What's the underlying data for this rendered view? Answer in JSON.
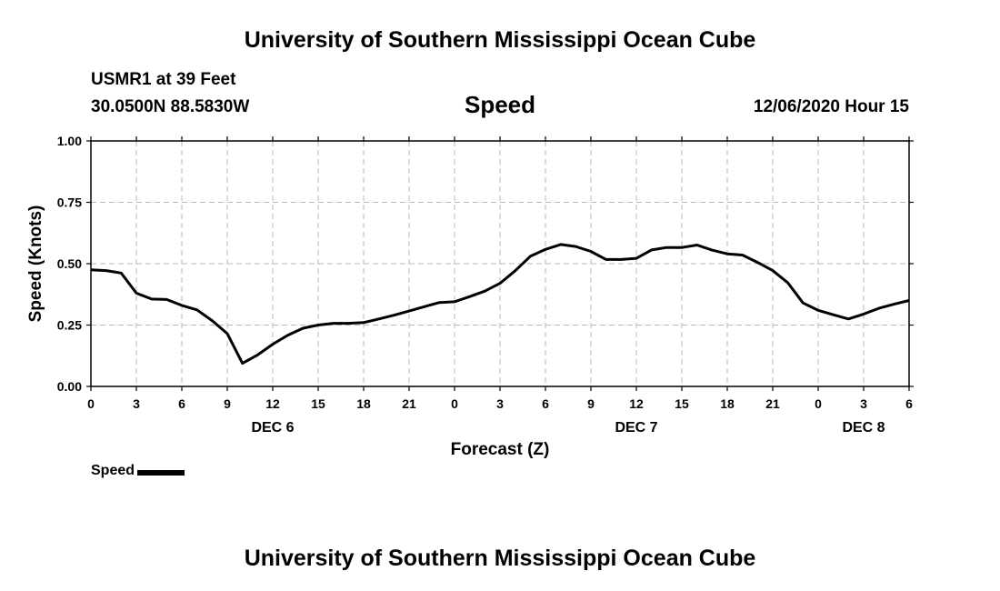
{
  "page": {
    "top_title": "University of Southern Mississippi Ocean Cube",
    "bottom_title": "University of Southern Mississippi Ocean Cube",
    "station": "USMR1 at 39 Feet",
    "coords": "30.0500N 88.5830W",
    "run_time": "12/06/2020 Hour 15"
  },
  "chart_data": {
    "type": "line",
    "title": "Speed",
    "xlabel": "Forecast (Z)",
    "ylabel": "Speed (Knots)",
    "xlim": [
      0,
      54
    ],
    "ylim": [
      0,
      1
    ],
    "grid": true,
    "x_ticks": [
      0,
      3,
      6,
      9,
      12,
      15,
      18,
      21,
      24,
      27,
      30,
      33,
      36,
      39,
      42,
      45,
      48,
      51,
      54
    ],
    "x_tick_labels": [
      "0",
      "3",
      "6",
      "9",
      "12",
      "15",
      "18",
      "21",
      "0",
      "3",
      "6",
      "9",
      "12",
      "15",
      "18",
      "21",
      "0",
      "3",
      "6"
    ],
    "y_ticks": [
      0,
      0.25,
      0.5,
      0.75,
      1.0
    ],
    "y_tick_labels": [
      "0.00",
      "0.25",
      "0.50",
      "0.75",
      "1.00"
    ],
    "day_labels": [
      {
        "x": 12,
        "label": "DEC 6"
      },
      {
        "x": 36,
        "label": "DEC 7"
      },
      {
        "x": 51,
        "label": "DEC 8"
      }
    ],
    "legend_position": "bottom-left",
    "series": [
      {
        "name": "Speed",
        "color": "#000000",
        "x": [
          0,
          1,
          2,
          3,
          4,
          5,
          6,
          7,
          8,
          9,
          10,
          11,
          12,
          13,
          14,
          15,
          16,
          17,
          18,
          19,
          20,
          21,
          22,
          23,
          24,
          25,
          26,
          27,
          28,
          29,
          30,
          31,
          32,
          33,
          34,
          35,
          36,
          37,
          38,
          39,
          40,
          41,
          42,
          43,
          44,
          45,
          46,
          47,
          48,
          49,
          50,
          51,
          52,
          53,
          54
        ],
        "values": [
          0.475,
          0.472,
          0.462,
          0.38,
          0.356,
          0.354,
          0.33,
          0.312,
          0.268,
          0.215,
          0.094,
          0.128,
          0.172,
          0.209,
          0.237,
          0.25,
          0.257,
          0.257,
          0.26,
          0.275,
          0.29,
          0.307,
          0.325,
          0.342,
          0.345,
          0.366,
          0.388,
          0.42,
          0.471,
          0.53,
          0.558,
          0.578,
          0.57,
          0.55,
          0.517,
          0.517,
          0.522,
          0.556,
          0.566,
          0.566,
          0.576,
          0.555,
          0.54,
          0.535,
          0.505,
          0.472,
          0.422,
          0.34,
          0.31,
          0.292,
          0.275,
          0.295,
          0.318,
          0.335,
          0.35
        ]
      }
    ]
  }
}
